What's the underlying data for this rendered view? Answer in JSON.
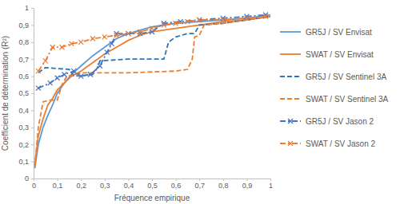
{
  "chart_data": {
    "type": "line",
    "x_label": "Fréquence empirique",
    "y_label": "Coefficient de détermination (R²)",
    "xlim": [
      0,
      1
    ],
    "ylim": [
      0,
      1
    ],
    "xticks": [
      0,
      {
        "value": 0.1,
        "label": "0,1"
      },
      {
        "value": 0.2,
        "label": "0,2"
      },
      {
        "value": 0.3,
        "label": "0,3"
      },
      {
        "value": 0.4,
        "label": "0,4"
      },
      {
        "value": 0.5,
        "label": "0,5"
      },
      {
        "value": 0.6,
        "label": "0,6"
      },
      {
        "value": 0.7,
        "label": "0,7"
      },
      {
        "value": 0.8,
        "label": "0,8"
      },
      {
        "value": 0.9,
        "label": "0,9"
      },
      1
    ],
    "yticks": [
      0,
      {
        "value": 0.1,
        "label": "0,1"
      },
      {
        "value": 0.2,
        "label": "0,2"
      },
      {
        "value": 0.3,
        "label": "0,3"
      },
      {
        "value": 0.4,
        "label": "0,4"
      },
      {
        "value": 0.5,
        "label": "0,5"
      },
      {
        "value": 0.6,
        "label": "0,6"
      },
      {
        "value": 0.7,
        "label": "0,7"
      },
      {
        "value": 0.8,
        "label": "0,8"
      },
      {
        "value": 0.9,
        "label": "0,9"
      },
      1
    ],
    "grid": false,
    "legend": "right",
    "series": [
      {
        "name": "GR5J / SV Envisat",
        "color": "#5b9bd5",
        "line_style": "solid",
        "x": [
          0.005,
          0.02,
          0.04,
          0.06,
          0.08,
          0.1,
          0.13,
          0.16,
          0.2,
          0.25,
          0.3,
          0.35,
          0.4,
          0.45,
          0.5,
          0.6,
          0.7,
          0.8,
          0.9,
          1.0
        ],
        "values": [
          0.06,
          0.2,
          0.3,
          0.37,
          0.43,
          0.5,
          0.56,
          0.61,
          0.66,
          0.72,
          0.77,
          0.82,
          0.85,
          0.87,
          0.89,
          0.91,
          0.92,
          0.93,
          0.94,
          0.96
        ]
      },
      {
        "name": "SWAT / SV Envisat",
        "color": "#ed7d31",
        "line_style": "solid",
        "x": [
          0.005,
          0.02,
          0.04,
          0.06,
          0.08,
          0.1,
          0.13,
          0.16,
          0.2,
          0.25,
          0.3,
          0.35,
          0.4,
          0.45,
          0.5,
          0.6,
          0.7,
          0.8,
          0.9,
          1.0
        ],
        "values": [
          0.08,
          0.25,
          0.35,
          0.43,
          0.47,
          0.52,
          0.56,
          0.6,
          0.63,
          0.68,
          0.73,
          0.77,
          0.81,
          0.84,
          0.86,
          0.88,
          0.9,
          0.92,
          0.93,
          0.95
        ]
      },
      {
        "name": "GR5J / SV Sentinel 3A",
        "color": "#2e75b6",
        "line_style": "dashed",
        "x": [
          0.02,
          0.05,
          0.15,
          0.17,
          0.25,
          0.27,
          0.28,
          0.4,
          0.55,
          0.57,
          0.6,
          0.65,
          0.68,
          0.7,
          0.8,
          0.9,
          1.0
        ],
        "values": [
          0.62,
          0.65,
          0.64,
          0.6,
          0.61,
          0.65,
          0.69,
          0.7,
          0.7,
          0.8,
          0.83,
          0.85,
          0.85,
          0.9,
          0.91,
          0.93,
          0.95
        ]
      },
      {
        "name": "SWAT / SV Sentinel 3A",
        "color": "#ed7d31",
        "line_style": "dashed",
        "x": [
          0.005,
          0.02,
          0.04,
          0.07,
          0.1,
          0.12,
          0.14,
          0.18,
          0.2,
          0.4,
          0.6,
          0.65,
          0.67,
          0.68,
          0.7,
          0.72,
          0.8,
          0.9,
          1.0
        ],
        "values": [
          0.07,
          0.3,
          0.45,
          0.46,
          0.46,
          0.55,
          0.6,
          0.61,
          0.62,
          0.62,
          0.63,
          0.64,
          0.7,
          0.83,
          0.84,
          0.9,
          0.91,
          0.93,
          0.95
        ]
      },
      {
        "name": "GR5J / SV Jason 2",
        "color": "#4472c4",
        "line_style": "dashdot",
        "marker": "x",
        "x": [
          0.02,
          0.07,
          0.1,
          0.13,
          0.17,
          0.2,
          0.24,
          0.28,
          0.31,
          0.33,
          0.35,
          0.4,
          0.45,
          0.5,
          0.55,
          0.62,
          0.7,
          0.8,
          0.9,
          0.98
        ],
        "values": [
          0.53,
          0.56,
          0.59,
          0.61,
          0.63,
          0.6,
          0.61,
          0.66,
          0.74,
          0.79,
          0.85,
          0.85,
          0.85,
          0.86,
          0.91,
          0.92,
          0.93,
          0.94,
          0.95,
          0.96
        ]
      },
      {
        "name": "SWAT / SV Jason 2",
        "color": "#ed7d31",
        "line_style": "dashdot",
        "marker": "x",
        "x": [
          0.02,
          0.05,
          0.08,
          0.12,
          0.16,
          0.2,
          0.25,
          0.3,
          0.35,
          0.4,
          0.45,
          0.5,
          0.55,
          0.6,
          0.65,
          0.7,
          0.8,
          0.9,
          0.98
        ],
        "values": [
          0.63,
          0.69,
          0.77,
          0.77,
          0.79,
          0.8,
          0.82,
          0.83,
          0.84,
          0.85,
          0.86,
          0.88,
          0.9,
          0.91,
          0.92,
          0.93,
          0.93,
          0.94,
          0.95
        ]
      }
    ]
  }
}
